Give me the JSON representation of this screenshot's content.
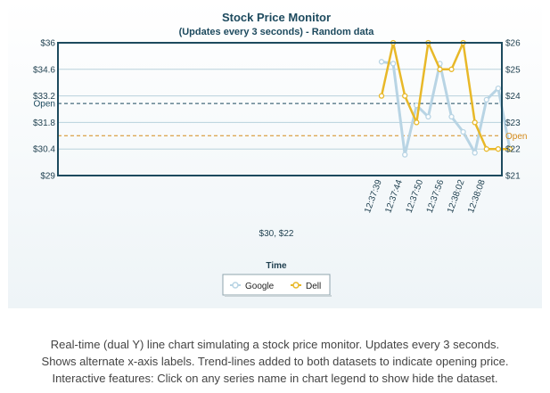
{
  "chart_data": {
    "type": "line",
    "title": "Stock Price Monitor",
    "subtitle": "(Updates every 3 seconds) - Random data",
    "xlabel": "Time",
    "x_tick_labels": [
      "12:37:39",
      "12:37:44",
      "12:37:50",
      "12:37:56",
      "12:38:02",
      "12:38:08"
    ],
    "y_left": {
      "ticks": [
        "$36",
        "$34.6",
        "$33.2",
        "$31.8",
        "$30.4",
        "$29"
      ],
      "ylim": [
        29,
        36
      ]
    },
    "y_right": {
      "ticks": [
        "$26",
        "$25",
        "$24",
        "$23",
        "$22",
        "$21"
      ],
      "ylim": [
        21,
        26
      ]
    },
    "x_index_range": [
      0,
      12
    ],
    "series": [
      {
        "name": "Google",
        "axis": "left",
        "color": "#b8d4e4",
        "values": [
          35.0,
          34.9,
          30.1,
          32.7,
          32.1,
          34.9,
          32.1,
          31.3,
          30.2,
          33.0,
          33.6,
          30.4
        ]
      },
      {
        "name": "Dell",
        "axis": "right",
        "color": "#e8b828",
        "values": [
          24.0,
          26.0,
          24.0,
          23.0,
          26.0,
          25.0,
          25.0,
          26.0,
          23.0,
          22.0,
          22.0,
          22.0
        ]
      }
    ],
    "trendlines": [
      {
        "label": "Open",
        "axis": "left",
        "value": 32.8,
        "color": "#1d4a5e"
      },
      {
        "label": "Open",
        "axis": "right",
        "value": 22.5,
        "color": "#d4891a"
      }
    ],
    "tooltip_text": "$30, $22",
    "legend": {
      "position": "bottom",
      "items": [
        "Google",
        "Dell"
      ]
    },
    "grid": true
  },
  "caption": {
    "line1": "Real-time (dual Y) line chart simulating a stock price monitor. Updates every 3 seconds.",
    "line2": "Shows alternate x-axis labels. Trend-lines added to both datasets to indicate opening price.",
    "line3": "Interactive features: Click on any series name in chart legend to show hide the dataset."
  }
}
